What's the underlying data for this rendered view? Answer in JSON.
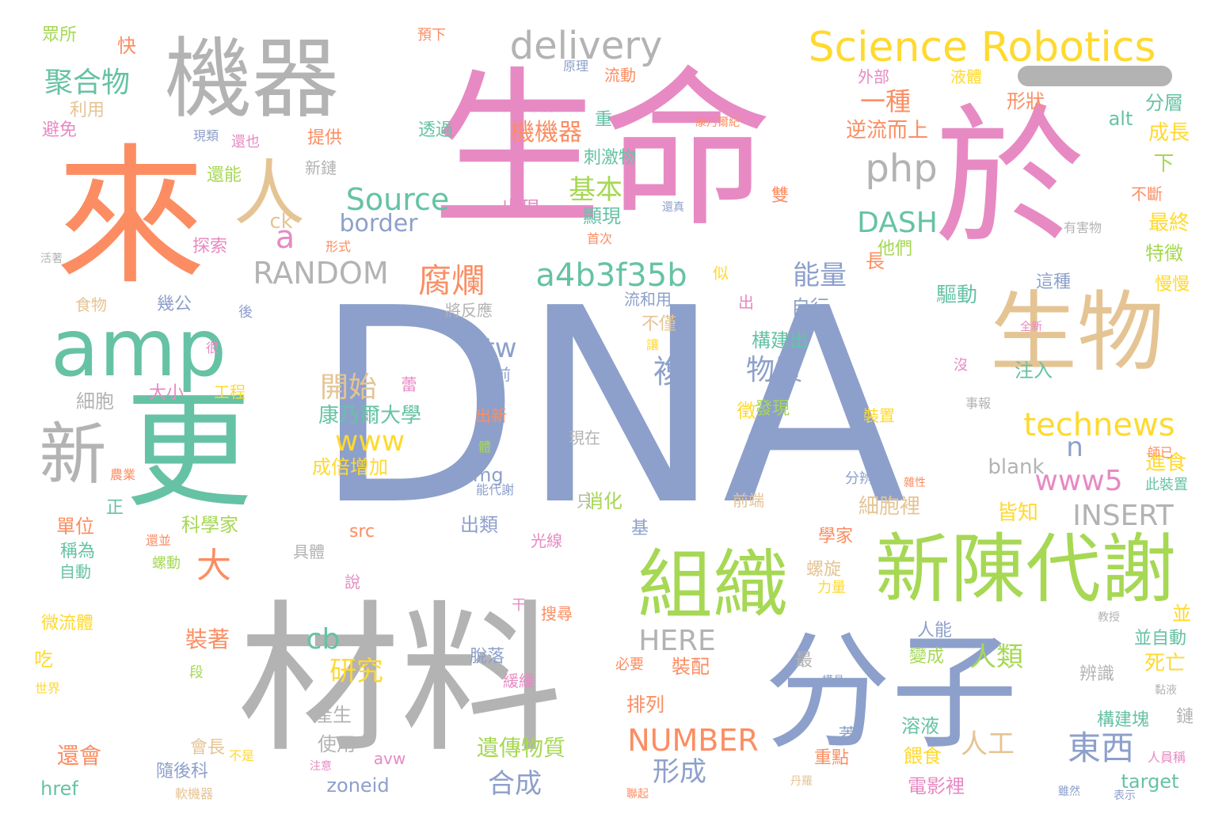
{
  "palette": {
    "salmon": "#fc8d62",
    "blue": "#8da0cb",
    "pink": "#e78ac3",
    "green": "#a6d854",
    "yellow": "#ffd92f",
    "tan": "#e5c494",
    "gray": "#b3b3b3",
    "teal": "#66c2a5"
  },
  "words": [
    {
      "text": "DNA",
      "color": "blue"
    },
    {
      "text": "生命",
      "color": "pink"
    },
    {
      "text": "材料",
      "color": "gray"
    },
    {
      "text": "來",
      "color": "salmon"
    },
    {
      "text": "於",
      "color": "pink"
    },
    {
      "text": "分子",
      "color": "blue"
    },
    {
      "text": "機器",
      "color": "gray"
    },
    {
      "text": "生物",
      "color": "tan"
    },
    {
      "text": "更",
      "color": "teal"
    },
    {
      "text": "amp",
      "color": "teal"
    },
    {
      "text": "新陳代謝",
      "color": "green"
    },
    {
      "text": "組織",
      "color": "green"
    },
    {
      "text": "新",
      "color": "gray"
    },
    {
      "text": "人",
      "color": "tan"
    },
    {
      "text": "Science Robotics",
      "color": "yellow"
    },
    {
      "text": "delivery",
      "color": "gray"
    },
    {
      "text": "a4b3f35b",
      "color": "teal"
    },
    {
      "text": "腐爛",
      "color": "salmon"
    },
    {
      "text": "php",
      "color": "gray"
    },
    {
      "text": "Source",
      "color": "teal"
    },
    {
      "text": "RANDOM",
      "color": "gray"
    },
    {
      "text": "DASH",
      "color": "teal"
    },
    {
      "text": "technews",
      "color": "yellow"
    },
    {
      "text": "www5",
      "color": "pink"
    },
    {
      "text": "INSERT",
      "color": "gray"
    },
    {
      "text": "NUMBER",
      "color": "salmon"
    },
    {
      "text": "HERE",
      "color": "gray"
    },
    {
      "text": "東西",
      "color": "blue"
    },
    {
      "text": "聚合物",
      "color": "teal"
    },
    {
      "text": "www",
      "color": "yellow"
    },
    {
      "text": "border",
      "color": "blue"
    },
    {
      "text": "一種",
      "color": "salmon"
    },
    {
      "text": "機機器",
      "color": "salmon"
    },
    {
      "text": "基本",
      "color": "green"
    },
    {
      "text": "能量",
      "color": "blue"
    },
    {
      "text": "物質",
      "color": "blue"
    },
    {
      "text": "開始",
      "color": "tan"
    },
    {
      "text": "tw",
      "color": "blue"
    },
    {
      "text": "複",
      "color": "blue"
    },
    {
      "text": "研究",
      "color": "yellow"
    },
    {
      "text": "人類",
      "color": "green"
    },
    {
      "text": "合成",
      "color": "blue"
    },
    {
      "text": "形成",
      "color": "blue"
    },
    {
      "text": "人工",
      "color": "tan"
    },
    {
      "text": "遺傳物質",
      "color": "green"
    },
    {
      "text": "cb",
      "color": "teal"
    },
    {
      "text": "大",
      "color": "salmon"
    },
    {
      "text": "a",
      "color": "pink"
    },
    {
      "text": "n",
      "color": "blue"
    },
    {
      "text": "ck",
      "color": "tan"
    },
    {
      "text": "逆流而上",
      "color": "salmon"
    },
    {
      "text": "形狀",
      "color": "salmon"
    },
    {
      "text": "分層",
      "color": "teal"
    },
    {
      "text": "成長",
      "color": "yellow"
    },
    {
      "text": "alt",
      "color": "teal"
    },
    {
      "text": "最終",
      "color": "yellow"
    },
    {
      "text": "特徵",
      "color": "green"
    },
    {
      "text": "慢慢",
      "color": "yellow"
    },
    {
      "text": "這種",
      "color": "blue"
    },
    {
      "text": "驅動",
      "color": "teal"
    },
    {
      "text": "自行",
      "color": "blue"
    },
    {
      "text": "構建出",
      "color": "teal"
    },
    {
      "text": "注入",
      "color": "teal"
    },
    {
      "text": "細胞裡",
      "color": "tan"
    },
    {
      "text": "進食",
      "color": "yellow"
    },
    {
      "text": "皆知",
      "color": "yellow"
    },
    {
      "text": "blank",
      "color": "gray"
    },
    {
      "text": "康乃爾大學",
      "color": "teal"
    },
    {
      "text": "成倍增加",
      "color": "yellow"
    },
    {
      "text": "img",
      "color": "blue"
    },
    {
      "text": "出類",
      "color": "blue"
    },
    {
      "text": "消化",
      "color": "green"
    },
    {
      "text": "科學家",
      "color": "green"
    },
    {
      "text": "大小",
      "color": "pink"
    },
    {
      "text": "工程",
      "color": "yellow"
    },
    {
      "text": "細胞",
      "color": "gray"
    },
    {
      "text": "單位",
      "color": "salmon"
    },
    {
      "text": "稱為",
      "color": "teal"
    },
    {
      "text": "自動",
      "color": "teal"
    },
    {
      "text": "微流體",
      "color": "yellow"
    },
    {
      "text": "吃",
      "color": "yellow"
    },
    {
      "text": "裝著",
      "color": "salmon"
    },
    {
      "text": "還會",
      "color": "salmon"
    },
    {
      "text": "href",
      "color": "teal"
    },
    {
      "text": "隨後科",
      "color": "blue"
    },
    {
      "text": "使用",
      "color": "gray"
    },
    {
      "text": "產生",
      "color": "gray"
    },
    {
      "text": "會長",
      "color": "tan"
    },
    {
      "text": "zoneid",
      "color": "blue"
    },
    {
      "text": "avw",
      "color": "pink"
    },
    {
      "text": "裝配",
      "color": "salmon"
    },
    {
      "text": "排列",
      "color": "salmon"
    },
    {
      "text": "溶液",
      "color": "teal"
    },
    {
      "text": "餵食",
      "color": "yellow"
    },
    {
      "text": "電影裡",
      "color": "pink"
    },
    {
      "text": "重點",
      "color": "salmon"
    },
    {
      "text": "死亡",
      "color": "yellow"
    },
    {
      "text": "辨識",
      "color": "gray"
    },
    {
      "text": "構建塊",
      "color": "teal"
    },
    {
      "text": "target",
      "color": "teal"
    },
    {
      "text": "並自動",
      "color": "teal"
    },
    {
      "text": "變成",
      "color": "green"
    },
    {
      "text": "人能",
      "color": "blue"
    },
    {
      "text": "最",
      "color": "gray"
    },
    {
      "text": "螺旋",
      "color": "tan"
    },
    {
      "text": "學家",
      "color": "salmon"
    },
    {
      "text": "力量",
      "color": "yellow"
    },
    {
      "text": "前端",
      "color": "tan"
    },
    {
      "text": "裝置",
      "color": "yellow"
    },
    {
      "text": "分辨",
      "color": "blue"
    },
    {
      "text": "眾所",
      "color": "green"
    },
    {
      "text": "快",
      "color": "salmon"
    },
    {
      "text": "利用",
      "color": "tan"
    },
    {
      "text": "避免",
      "color": "pink"
    },
    {
      "text": "現類",
      "color": "blue"
    },
    {
      "text": "還也",
      "color": "pink"
    },
    {
      "text": "提供",
      "color": "salmon"
    },
    {
      "text": "新鏈",
      "color": "gray"
    },
    {
      "text": "還能",
      "color": "green"
    },
    {
      "text": "探索",
      "color": "pink"
    },
    {
      "text": "形式",
      "color": "salmon"
    },
    {
      "text": "活著",
      "color": "gray"
    },
    {
      "text": "食物",
      "color": "tan"
    },
    {
      "text": "幾公",
      "color": "blue"
    },
    {
      "text": "後",
      "color": "blue"
    },
    {
      "text": "很",
      "color": "pink"
    },
    {
      "text": "正",
      "color": "teal"
    },
    {
      "text": "農業",
      "color": "salmon"
    },
    {
      "text": "還並",
      "color": "salmon"
    },
    {
      "text": "螺動",
      "color": "green"
    },
    {
      "text": "段",
      "color": "green"
    },
    {
      "text": "世界",
      "color": "yellow"
    },
    {
      "text": "軟機器",
      "color": "tan"
    },
    {
      "text": "不是",
      "color": "yellow"
    },
    {
      "text": "注意",
      "color": "pink"
    },
    {
      "text": "具體",
      "color": "gray"
    },
    {
      "text": "說",
      "color": "pink"
    },
    {
      "text": "干",
      "color": "pink"
    },
    {
      "text": "搜尋",
      "color": "salmon"
    },
    {
      "text": "脫落",
      "color": "blue"
    },
    {
      "text": "緩緩",
      "color": "pink"
    },
    {
      "text": "必要",
      "color": "salmon"
    },
    {
      "text": "光線",
      "color": "pink"
    },
    {
      "text": "基",
      "color": "blue"
    },
    {
      "text": "只",
      "color": "gray"
    },
    {
      "text": "現在",
      "color": "gray"
    },
    {
      "text": "出新",
      "color": "salmon"
    },
    {
      "text": "向前",
      "color": "blue"
    },
    {
      "text": "將反應",
      "color": "gray"
    },
    {
      "text": "流和用",
      "color": "blue"
    },
    {
      "text": "不僅",
      "color": "tan"
    },
    {
      "text": "讓",
      "color": "yellow"
    },
    {
      "text": "似",
      "color": "yellow"
    },
    {
      "text": "出現",
      "color": "pink"
    },
    {
      "text": "顯現",
      "color": "teal"
    },
    {
      "text": "刺激物",
      "color": "teal"
    },
    {
      "text": "重",
      "color": "teal"
    },
    {
      "text": "透過",
      "color": "teal"
    },
    {
      "text": "科學學院",
      "color": "pink"
    },
    {
      "text": "原理",
      "color": "blue"
    },
    {
      "text": "流動",
      "color": "salmon"
    },
    {
      "text": "預下",
      "color": "salmon"
    },
    {
      "text": "康乃爾紀",
      "color": "salmon"
    },
    {
      "text": "雙",
      "color": "salmon"
    },
    {
      "text": "還真",
      "color": "blue"
    },
    {
      "text": "首次",
      "color": "salmon"
    },
    {
      "text": "長",
      "color": "salmon"
    },
    {
      "text": "他們",
      "color": "green"
    },
    {
      "text": "出",
      "color": "pink"
    },
    {
      "text": "外部",
      "color": "pink"
    },
    {
      "text": "液體",
      "color": "yellow"
    },
    {
      "text": "不斷",
      "color": "salmon"
    },
    {
      "text": "有害物",
      "color": "gray"
    },
    {
      "text": "全新",
      "color": "pink"
    },
    {
      "text": "沒",
      "color": "pink"
    },
    {
      "text": "事報",
      "color": "gray"
    },
    {
      "text": "師已",
      "color": "salmon"
    },
    {
      "text": "此裝置",
      "color": "teal"
    },
    {
      "text": "雜性",
      "color": "salmon"
    },
    {
      "text": "教授",
      "color": "gray"
    },
    {
      "text": "黏液",
      "color": "gray"
    },
    {
      "text": "模具",
      "color": "blue"
    },
    {
      "text": "雖然",
      "color": "blue"
    },
    {
      "text": "表示",
      "color": "blue"
    },
    {
      "text": "人員稱",
      "color": "pink"
    },
    {
      "text": "鏈",
      "color": "gray"
    },
    {
      "text": "丹羅",
      "color": "tan"
    },
    {
      "text": "蓋",
      "color": "blue"
    },
    {
      "text": "聯起",
      "color": "salmon"
    },
    {
      "text": "徵",
      "color": "yellow"
    },
    {
      "text": "發現",
      "color": "green"
    },
    {
      "text": "下",
      "color": "green"
    },
    {
      "text": "這",
      "color": "blue"
    },
    {
      "text": "能代謝",
      "color": "blue"
    },
    {
      "text": "體",
      "color": "green"
    },
    {
      "text": "並",
      "color": "yellow"
    },
    {
      "text": "src",
      "color": "salmon"
    },
    {
      "text": "蕾",
      "color": "pink"
    }
  ]
}
